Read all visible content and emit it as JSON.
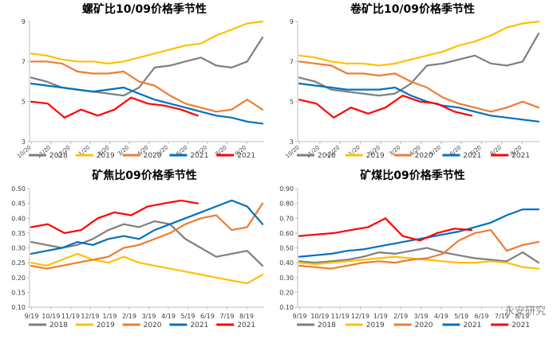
{
  "colors": {
    "2018": "#7f7f7f",
    "2019": "#ffc000",
    "2020": "#ed7d31",
    "2021": "#0070c0",
    "2021b": "#ff0000",
    "axis": "#bfbfbf",
    "text": "#404040"
  },
  "watermark": "永安研究",
  "chart_data": [
    {
      "type": "line",
      "title": "螺矿比10/09价格季节性",
      "ylim": [
        3,
        9
      ],
      "yticks": [
        "3",
        "5",
        "7",
        "9"
      ],
      "xticklabels": [
        "10/20",
        "11/20",
        "12/20",
        "1/20",
        "2/20",
        "3/20",
        "4/20",
        "5/20",
        "6/20",
        "7/20",
        "8/20",
        "9/20"
      ],
      "x_tick_rotate": true,
      "legend": [
        "2018",
        "2019",
        "2020",
        "2021",
        "2021"
      ],
      "series": [
        {
          "name": "2018",
          "values": [
            6.2,
            6.0,
            5.7,
            5.6,
            5.5,
            5.4,
            5.3,
            5.7,
            6.7,
            6.8,
            7.0,
            7.2,
            6.8,
            6.7,
            7.0,
            8.2
          ]
        },
        {
          "name": "2019",
          "values": [
            7.4,
            7.3,
            7.1,
            7.0,
            7.0,
            6.9,
            7.0,
            7.2,
            7.4,
            7.6,
            7.8,
            7.9,
            8.3,
            8.6,
            8.9,
            9.0
          ]
        },
        {
          "name": "2020",
          "values": [
            7.0,
            7.0,
            6.9,
            6.5,
            6.4,
            6.4,
            6.5,
            6.0,
            5.8,
            5.3,
            4.9,
            4.7,
            4.5,
            4.6,
            5.1,
            4.6
          ]
        },
        {
          "name": "2021",
          "values": [
            5.9,
            5.8,
            5.7,
            5.6,
            5.5,
            5.6,
            5.7,
            5.4,
            5.1,
            4.9,
            4.7,
            4.5,
            4.3,
            4.2,
            4.0,
            3.9
          ]
        },
        {
          "name": "2021",
          "values": [
            5.0,
            4.9,
            4.2,
            4.6,
            4.3,
            4.6,
            5.2,
            4.9,
            4.8,
            4.6,
            4.3
          ]
        }
      ]
    },
    {
      "type": "line",
      "title": "卷矿比10/09价格季节性",
      "ylim": [
        3,
        9
      ],
      "yticks": [
        "3",
        "5",
        "7",
        "9"
      ],
      "xticklabels": [
        "10/20",
        "11/20",
        "12/20",
        "1/20",
        "2/20",
        "3/20",
        "4/20",
        "5/20",
        "6/20",
        "7/20",
        "8/20",
        "9/20"
      ],
      "x_tick_rotate": true,
      "legend": [
        "2018",
        "2019",
        "2020",
        "2021",
        "2021"
      ],
      "series": [
        {
          "name": "2018",
          "values": [
            6.2,
            6.0,
            5.6,
            5.5,
            5.4,
            5.3,
            5.4,
            5.9,
            6.8,
            6.9,
            7.1,
            7.3,
            6.9,
            6.8,
            7.0,
            8.4
          ]
        },
        {
          "name": "2019",
          "values": [
            7.3,
            7.2,
            7.0,
            6.9,
            6.9,
            6.8,
            6.9,
            7.1,
            7.3,
            7.5,
            7.8,
            8.0,
            8.3,
            8.7,
            8.9,
            9.0
          ]
        },
        {
          "name": "2020",
          "values": [
            7.0,
            6.9,
            6.8,
            6.4,
            6.4,
            6.3,
            6.4,
            6.0,
            5.7,
            5.2,
            4.9,
            4.7,
            4.5,
            4.7,
            5.0,
            4.7
          ]
        },
        {
          "name": "2021",
          "values": [
            5.9,
            5.8,
            5.7,
            5.6,
            5.6,
            5.6,
            5.7,
            5.3,
            5.0,
            4.8,
            4.7,
            4.5,
            4.3,
            4.2,
            4.1,
            4.0
          ]
        },
        {
          "name": "2021",
          "values": [
            5.1,
            4.9,
            4.2,
            4.7,
            4.4,
            4.7,
            5.3,
            5.0,
            4.9,
            4.5,
            4.3
          ]
        }
      ]
    },
    {
      "type": "line",
      "title": "矿焦比09价格季节性",
      "ylim": [
        0.1,
        0.5
      ],
      "yticks": [
        "0.10",
        "0.15",
        "0.20",
        "0.25",
        "0.30",
        "0.35",
        "0.40",
        "0.45",
        "0.50"
      ],
      "xticklabels": [
        "9/19",
        "10/19",
        "11/19",
        "12/19",
        "1/19",
        "2/19",
        "3/19",
        "4/19",
        "5/19",
        "6/19",
        "7/19",
        "8/19"
      ],
      "x_tick_rotate": false,
      "legend": [
        "2018",
        "2019",
        "2020",
        "2021",
        "2021"
      ],
      "series": [
        {
          "name": "2018",
          "values": [
            0.32,
            0.31,
            0.3,
            0.31,
            0.33,
            0.36,
            0.38,
            0.37,
            0.39,
            0.38,
            0.33,
            0.3,
            0.27,
            0.28,
            0.29,
            0.24
          ]
        },
        {
          "name": "2019",
          "values": [
            0.25,
            0.24,
            0.26,
            0.28,
            0.26,
            0.25,
            0.27,
            0.25,
            0.24,
            0.23,
            0.22,
            0.21,
            0.2,
            0.19,
            0.18,
            0.21
          ]
        },
        {
          "name": "2020",
          "values": [
            0.24,
            0.23,
            0.24,
            0.25,
            0.26,
            0.27,
            0.3,
            0.31,
            0.33,
            0.35,
            0.38,
            0.4,
            0.41,
            0.36,
            0.37,
            0.45
          ]
        },
        {
          "name": "2021",
          "values": [
            0.28,
            0.29,
            0.3,
            0.32,
            0.31,
            0.33,
            0.34,
            0.33,
            0.36,
            0.38,
            0.4,
            0.42,
            0.44,
            0.46,
            0.44,
            0.38
          ]
        },
        {
          "name": "2021",
          "values": [
            0.37,
            0.38,
            0.35,
            0.36,
            0.4,
            0.42,
            0.41,
            0.44,
            0.45,
            0.46,
            0.45
          ]
        }
      ]
    },
    {
      "type": "line",
      "title": "矿煤比09价格季节性",
      "ylim": [
        0.1,
        0.9
      ],
      "yticks": [
        "0.10",
        "0.20",
        "0.30",
        "0.40",
        "0.50",
        "0.60",
        "0.70",
        "0.80",
        "0.90"
      ],
      "xticklabels": [
        "9/19",
        "10/19",
        "11/19",
        "12/19",
        "1/19",
        "2/19",
        "3/19",
        "4/19",
        "5/19",
        "6/19",
        "7/19",
        "8/19"
      ],
      "x_tick_rotate": false,
      "legend": [
        "2018",
        "2019",
        "2020",
        "2021",
        "2021"
      ],
      "series": [
        {
          "name": "2018",
          "values": [
            0.41,
            0.4,
            0.41,
            0.42,
            0.44,
            0.47,
            0.46,
            0.48,
            0.5,
            0.47,
            0.45,
            0.43,
            0.42,
            0.41,
            0.47,
            0.4
          ]
        },
        {
          "name": "2019",
          "values": [
            0.4,
            0.39,
            0.4,
            0.41,
            0.42,
            0.43,
            0.44,
            0.43,
            0.42,
            0.41,
            0.4,
            0.4,
            0.41,
            0.4,
            0.37,
            0.36
          ]
        },
        {
          "name": "2020",
          "values": [
            0.38,
            0.37,
            0.36,
            0.38,
            0.4,
            0.41,
            0.4,
            0.42,
            0.43,
            0.46,
            0.55,
            0.6,
            0.62,
            0.48,
            0.52,
            0.54
          ]
        },
        {
          "name": "2021",
          "values": [
            0.44,
            0.45,
            0.46,
            0.48,
            0.49,
            0.51,
            0.53,
            0.55,
            0.57,
            0.59,
            0.61,
            0.64,
            0.67,
            0.72,
            0.76,
            0.76
          ]
        },
        {
          "name": "2021",
          "values": [
            0.58,
            0.59,
            0.6,
            0.62,
            0.64,
            0.7,
            0.58,
            0.55,
            0.6,
            0.63,
            0.62
          ]
        }
      ]
    }
  ]
}
